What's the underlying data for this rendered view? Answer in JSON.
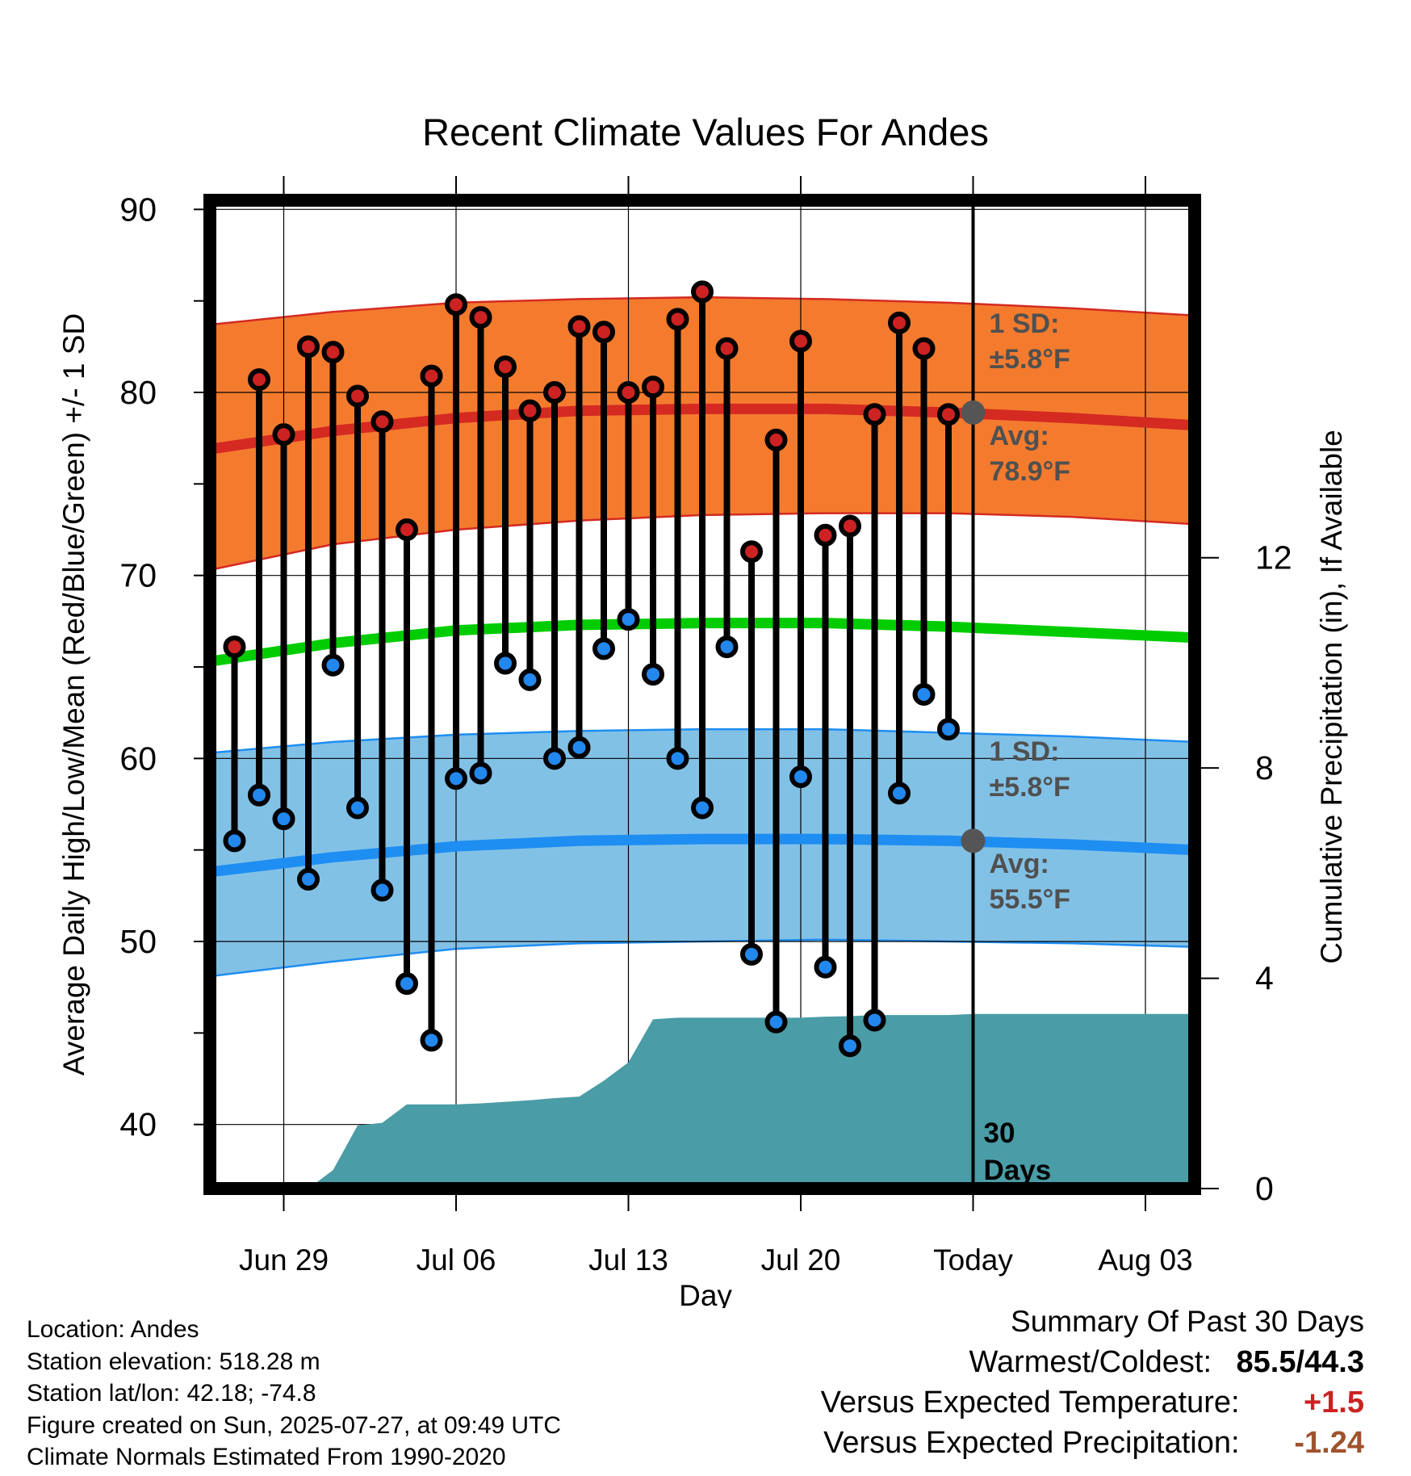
{
  "chart_data": {
    "type": "line",
    "title": "Recent Climate Values For Andes",
    "xlabel": "Day",
    "ylabel_left": "Average Daily High/Low/Mean (Red/Blue/Green) +/- 1 SD",
    "ylabel_right": "Cumulative Precipitation (in), If Available",
    "x_range": [
      "2025-06-26",
      "2025-08-05"
    ],
    "ylim_left": [
      36.5,
      90.5
    ],
    "yticks_left": [
      40,
      50,
      60,
      70,
      80,
      90
    ],
    "ylim_right": [
      0,
      18.8
    ],
    "yticks_right": [
      0,
      4,
      8,
      12
    ],
    "x_ticks": [
      {
        "date": "2025-06-29",
        "label": "Jun 29"
      },
      {
        "date": "2025-07-06",
        "label": "Jul 06"
      },
      {
        "date": "2025-07-13",
        "label": "Jul 13"
      },
      {
        "date": "2025-07-20",
        "label": "Jul 20"
      },
      {
        "date": "2025-07-27",
        "label": "Today"
      },
      {
        "date": "2025-08-03",
        "label": "Aug 03"
      }
    ],
    "today": "2025-07-27",
    "window_label": "30 Days",
    "grid": true,
    "observed": {
      "dates": [
        "2025-06-27",
        "2025-06-28",
        "2025-06-29",
        "2025-06-30",
        "2025-07-01",
        "2025-07-02",
        "2025-07-03",
        "2025-07-04",
        "2025-07-05",
        "2025-07-06",
        "2025-07-07",
        "2025-07-08",
        "2025-07-09",
        "2025-07-10",
        "2025-07-11",
        "2025-07-12",
        "2025-07-13",
        "2025-07-14",
        "2025-07-15",
        "2025-07-16",
        "2025-07-17",
        "2025-07-18",
        "2025-07-19",
        "2025-07-20",
        "2025-07-21",
        "2025-07-22",
        "2025-07-23",
        "2025-07-24",
        "2025-07-25",
        "2025-07-26"
      ],
      "highs": [
        66.1,
        80.7,
        77.7,
        82.5,
        82.2,
        79.8,
        78.4,
        72.5,
        80.9,
        84.8,
        84.1,
        81.4,
        79.0,
        80.0,
        83.6,
        83.3,
        80.0,
        80.3,
        84.0,
        85.5,
        82.4,
        71.3,
        77.4,
        82.8,
        72.2,
        72.7,
        78.8,
        83.8,
        82.4,
        78.8
      ],
      "lows": [
        55.5,
        58.0,
        56.7,
        53.4,
        65.1,
        57.3,
        52.8,
        47.7,
        44.6,
        58.9,
        59.2,
        65.2,
        64.3,
        60.0,
        60.6,
        66.0,
        67.6,
        64.6,
        60.0,
        57.3,
        66.1,
        49.3,
        45.6,
        59.0,
        48.6,
        44.3,
        45.7,
        58.1,
        63.5,
        61.6
      ],
      "high_color": "#cc2222",
      "low_color": "#2288ee"
    },
    "normals": {
      "dates": [
        "2025-06-26",
        "2025-07-01",
        "2025-07-06",
        "2025-07-11",
        "2025-07-16",
        "2025-07-21",
        "2025-07-26",
        "2025-07-31",
        "2025-08-05"
      ],
      "avg_high": [
        76.9,
        77.9,
        78.6,
        79.0,
        79.1,
        79.1,
        78.9,
        78.6,
        78.2
      ],
      "avg_high_upper": [
        83.7,
        84.4,
        84.9,
        85.1,
        85.2,
        85.1,
        84.9,
        84.6,
        84.2
      ],
      "avg_high_lower": [
        70.3,
        71.7,
        72.5,
        73.0,
        73.3,
        73.4,
        73.4,
        73.2,
        72.8
      ],
      "avg_mean": [
        65.3,
        66.3,
        67.0,
        67.3,
        67.4,
        67.4,
        67.2,
        66.9,
        66.6
      ],
      "avg_low": [
        53.8,
        54.6,
        55.2,
        55.5,
        55.6,
        55.6,
        55.5,
        55.3,
        55.0
      ],
      "avg_low_upper": [
        60.3,
        60.9,
        61.3,
        61.5,
        61.6,
        61.6,
        61.4,
        61.2,
        60.9
      ],
      "avg_low_lower": [
        48.1,
        48.9,
        49.6,
        49.9,
        50.0,
        50.1,
        50.0,
        49.9,
        49.7
      ],
      "high_color": "#d42a22",
      "high_band_color": "#f47b2e",
      "mean_color": "#00cc00",
      "low_color": "#1e8ef2",
      "low_band_color": "#82c1e6"
    },
    "precip": {
      "dates": [
        "2025-06-28",
        "2025-06-29",
        "2025-06-30",
        "2025-07-01",
        "2025-07-02",
        "2025-07-03",
        "2025-07-04",
        "2025-07-05",
        "2025-07-06",
        "2025-07-07",
        "2025-07-08",
        "2025-07-09",
        "2025-07-10",
        "2025-07-11",
        "2025-07-12",
        "2025-07-13",
        "2025-07-14",
        "2025-07-15",
        "2025-07-16",
        "2025-07-17",
        "2025-07-18",
        "2025-07-19",
        "2025-07-20",
        "2025-07-21",
        "2025-07-22",
        "2025-07-23",
        "2025-07-24",
        "2025-07-25",
        "2025-07-26",
        "2025-07-27",
        "2025-08-05"
      ],
      "values": [
        0,
        0,
        0,
        0.35,
        1.2,
        1.25,
        1.6,
        1.6,
        1.6,
        1.62,
        1.65,
        1.68,
        1.72,
        1.75,
        2.05,
        2.4,
        3.22,
        3.25,
        3.25,
        3.25,
        3.25,
        3.25,
        3.25,
        3.27,
        3.28,
        3.3,
        3.3,
        3.3,
        3.3,
        3.32,
        3.32
      ],
      "color": "#4a9ca6"
    },
    "annotations": {
      "high_sd": {
        "label": "1 SD:",
        "value": "±5.8°F"
      },
      "high_avg": {
        "label": "Avg:",
        "value": "78.9°F",
        "temp": 78.9
      },
      "low_sd": {
        "label": "1 SD:",
        "value": "±5.8°F"
      },
      "low_avg": {
        "label": "Avg:",
        "value": "55.5°F",
        "temp": 55.5
      }
    }
  },
  "info": {
    "location": "Location: Andes",
    "elevation": "Station elevation: 518.28 m",
    "latlon": "Station lat/lon: 42.18; -74.8",
    "created": "Figure created on Sun, 2025-07-27, at 09:49 UTC",
    "normals": "Climate Normals Estimated From 1990-2020"
  },
  "summary": {
    "heading": "Summary Of Past 30 Days",
    "warmest_label": "Warmest/Coldest:",
    "warmest_value": "85.5/44.3",
    "temp_label": "Versus Expected Temperature:",
    "temp_value": "+1.5",
    "temp_color": "#cc2222",
    "precip_label": "Versus Expected Precipitation:",
    "precip_value": "-1.24",
    "precip_color": "#a0522d"
  }
}
